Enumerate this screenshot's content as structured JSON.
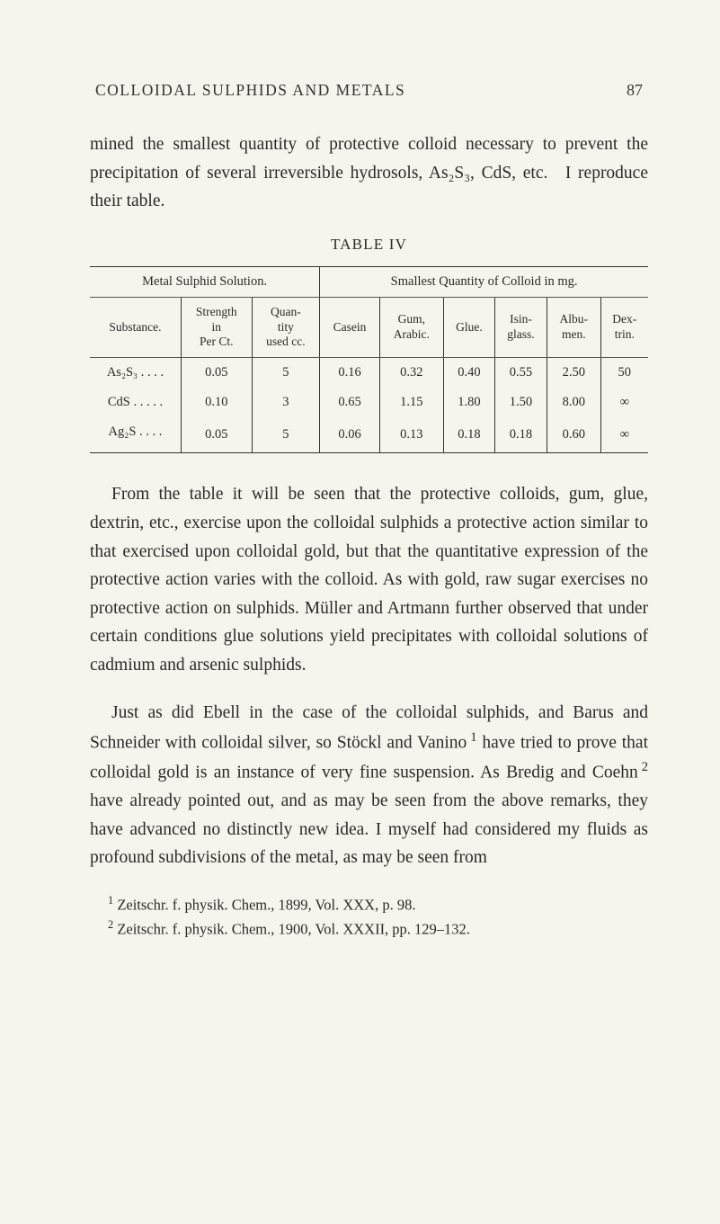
{
  "header": {
    "running_head": "COLLOIDAL SULPHIDS AND METALS",
    "page_number": "87"
  },
  "paragraphs": {
    "intro": "mined the smallest quantity of protective colloid necessary to prevent the precipitation of several irreversible hydrosols, As₂S₃, CdS, etc. I reproduce their table.",
    "after_table": "From the table it will be seen that the protective colloids, gum, glue, dextrin, etc., exercise upon the colloidal sulphids a protective action similar to that exercised upon colloidal gold, but that the quantitative expression of the protective action varies with the colloid.  As with gold, raw sugar exercises no protective action on sulphids.  Müller and Artmann further observed that under certain conditions glue solutions yield precipitates with colloidal solutions of cadmium and arsenic sulphids.",
    "para3_html": "Just as did Ebell in the case of the colloidal sulphids, and Barus and Schneider with colloidal silver, so Stöckl and Vanino <sup class=\"fn\">1</sup> have tried to prove that colloidal gold is an instance of very fine suspension.  As Bredig and Coehn <sup class=\"fn\">2</sup> have already pointed out, and as may be seen from the above remarks, they have advanced no distinctly new idea.  I myself had considered my fluids as profound subdivisions of the metal, as may be seen from"
  },
  "table": {
    "caption": "TABLE IV",
    "section_left": "Metal Sulphid Solution.",
    "section_right": "Smallest Quantity of Colloid in mg.",
    "columns": {
      "substance": "Substance.",
      "strength": "Strength\nin\nPer Ct.",
      "quantity": "Quan-\ntity\nused cc.",
      "casein": "Casein",
      "gum": "Gum,\nArabic.",
      "glue": "Glue.",
      "isin": "Isin-\nglass.",
      "albu": "Albu-\nmen.",
      "dex": "Dex-\ntrin."
    },
    "rows": [
      {
        "substance": "As₂S₃ . . . .",
        "strength": "0.05",
        "qty": "5",
        "casein": "0.16",
        "gum": "0.32",
        "glue": "0.40",
        "isin": "0.55",
        "albu": "2.50",
        "dex": "50"
      },
      {
        "substance": "CdS . . . . .",
        "strength": "0.10",
        "qty": "3",
        "casein": "0.65",
        "gum": "1.15",
        "glue": "1.80",
        "isin": "1.50",
        "albu": "8.00",
        "dex": "∞"
      },
      {
        "substance": "Ag₂S . . . .",
        "strength": "0.05",
        "qty": "5",
        "casein": "0.06",
        "gum": "0.13",
        "glue": "0.18",
        "isin": "0.18",
        "albu": "0.60",
        "dex": "∞"
      }
    ]
  },
  "footnotes": {
    "f1": "Zeitschr. f. physik. Chem., 1899, Vol. XXX, p. 98.",
    "f2": "Zeitschr. f. physik. Chem., 1900, Vol. XXXII, pp. 129–132."
  },
  "style": {
    "background_color": "#f5f5ed",
    "text_color": "#2a2a2a",
    "border_color": "#333333",
    "body_fontsize_pt": 15,
    "table_fontsize_pt": 11,
    "footnote_fontsize_pt": 12
  }
}
